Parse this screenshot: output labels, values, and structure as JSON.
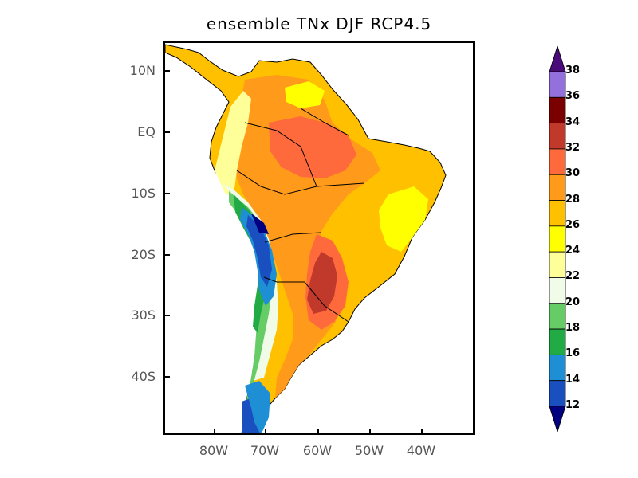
{
  "title": "ensemble TNx DJF RCP4.5",
  "lat_labels": [
    "10N",
    "EQ",
    "10S",
    "20S",
    "30S",
    "40S"
  ],
  "lon_labels": [
    "80W",
    "70W",
    "60W",
    "50W",
    "40W"
  ],
  "colorbar": {
    "labels": [
      "38",
      "36",
      "34",
      "32",
      "30",
      "28",
      "26",
      "24",
      "22",
      "20",
      "18",
      "16",
      "14",
      "12"
    ],
    "colors": [
      "#4a0a7a",
      "#9370db",
      "#7a0000",
      "#c0392b",
      "#ff6a3d",
      "#ff9a1a",
      "#ffc000",
      "#ffff00",
      "#ffff9a",
      "#f0fbe8",
      "#66cc66",
      "#22aa44",
      "#1e8fd5",
      "#1a4fbf",
      "#000080"
    ]
  }
}
